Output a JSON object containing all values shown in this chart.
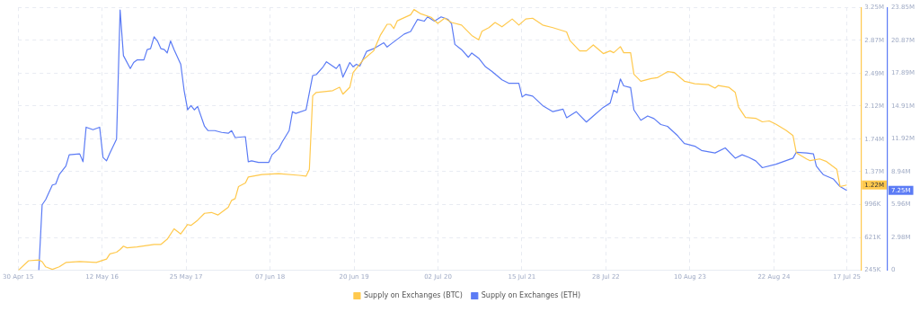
{
  "chart_data": {
    "type": "line",
    "series": [
      {
        "name": "Supply on Exchanges (BTC)",
        "color": "#ffc94d",
        "axis": "y",
        "x": [
          "2015-05-01",
          "2015-06-16",
          "2015-08-01",
          "2015-08-16",
          "2015-09-01",
          "2015-10-01",
          "2015-11-01",
          "2015-12-01",
          "2016-02-01",
          "2016-04-16",
          "2016-06-01",
          "2016-06-16",
          "2016-07-16",
          "2016-08-01",
          "2016-08-16",
          "2016-09-01",
          "2016-10-16",
          "2017-01-01",
          "2017-02-01",
          "2017-03-01",
          "2017-04-01",
          "2017-05-01",
          "2017-06-01",
          "2017-06-16",
          "2017-07-16",
          "2017-08-16",
          "2017-09-16",
          "2017-10-16",
          "2017-12-01",
          "2017-12-16",
          "2018-01-01",
          "2018-01-16",
          "2018-02-16",
          "2018-03-01",
          "2018-05-01",
          "2018-07-16",
          "2018-10-16",
          "2018-11-16",
          "2018-12-01",
          "2018-12-16",
          "2019-01-01",
          "2019-03-16",
          "2019-04-16",
          "2019-05-01",
          "2019-06-01",
          "2019-06-16",
          "2019-08-01",
          "2019-09-16",
          "2019-10-16",
          "2019-11-16",
          "2019-12-01",
          "2019-12-16",
          "2020-01-01",
          "2020-03-01",
          "2020-03-16",
          "2020-04-16",
          "2020-06-01",
          "2020-07-01",
          "2020-08-01",
          "2020-09-01",
          "2020-10-16",
          "2020-12-01",
          "2021-01-01",
          "2021-01-16",
          "2021-02-16",
          "2021-03-16",
          "2021-04-16",
          "2021-06-01",
          "2021-07-01",
          "2021-08-01",
          "2021-09-01",
          "2021-10-16",
          "2021-12-01",
          "2022-02-01",
          "2022-02-16",
          "2022-04-01",
          "2022-05-01",
          "2022-06-01",
          "2022-07-16",
          "2022-08-16",
          "2022-09-01",
          "2022-10-01",
          "2022-10-16",
          "2022-11-16",
          "2022-12-01",
          "2023-01-01",
          "2023-02-16",
          "2023-03-16",
          "2023-05-01",
          "2023-06-01",
          "2023-07-16",
          "2023-09-01",
          "2023-11-01",
          "2023-12-01",
          "2023-12-16",
          "2024-02-01",
          "2024-03-01",
          "2024-03-16",
          "2024-04-16",
          "2024-06-01",
          "2024-07-01",
          "2024-08-01",
          "2024-09-01",
          "2024-10-16",
          "2024-11-16",
          "2024-12-01",
          "2025-01-16",
          "2025-02-01",
          "2025-03-16",
          "2025-04-16",
          "2025-06-01",
          "2025-06-16",
          "2025-07-16"
        ],
        "values": [
          245000,
          354000,
          363000,
          344000,
          284000,
          255000,
          284000,
          334000,
          344000,
          334000,
          373000,
          432000,
          452000,
          482000,
          521000,
          502000,
          511000,
          541000,
          541000,
          600000,
          719000,
          660000,
          768000,
          758000,
          817000,
          896000,
          906000,
          877000,
          965000,
          1044000,
          1064000,
          1202000,
          1242000,
          1311000,
          1340000,
          1350000,
          1330000,
          1321000,
          1400000,
          2238000,
          2278000,
          2298000,
          2337000,
          2258000,
          2337000,
          2505000,
          2653000,
          2752000,
          2929000,
          3057000,
          3057000,
          3008000,
          3097000,
          3166000,
          3225000,
          3176000,
          3136000,
          3067000,
          3126000,
          3077000,
          3048000,
          2929000,
          2880000,
          2978000,
          3018000,
          3077000,
          3028000,
          3117000,
          3048000,
          3117000,
          3126000,
          3048000,
          3018000,
          2969000,
          2870000,
          2752000,
          2752000,
          2821000,
          2722000,
          2752000,
          2732000,
          2801000,
          2732000,
          2732000,
          2485000,
          2406000,
          2436000,
          2446000,
          2515000,
          2505000,
          2406000,
          2377000,
          2367000,
          2327000,
          2357000,
          2337000,
          2278000,
          2110000,
          1992000,
          1982000,
          1942000,
          1952000,
          1913000,
          1844000,
          1784000,
          1587000,
          1518000,
          1498000,
          1518000,
          1488000,
          1400000,
          1202000,
          1220000
        ]
      },
      {
        "name": "Supply on Exchanges (ETH)",
        "color": "#5b7bf5",
        "axis": "y2",
        "x": [
          "2015-08-01",
          "2015-08-16",
          "2015-09-01",
          "2015-10-01",
          "2015-10-16",
          "2015-11-01",
          "2015-12-01",
          "2015-12-16",
          "2016-02-01",
          "2016-02-16",
          "2016-03-01",
          "2016-04-01",
          "2016-05-01",
          "2016-05-16",
          "2016-06-01",
          "2016-06-16",
          "2016-07-16",
          "2016-08-01",
          "2016-08-16",
          "2016-09-16",
          "2016-10-01",
          "2016-10-16",
          "2016-11-16",
          "2016-12-01",
          "2016-12-16",
          "2017-01-01",
          "2017-01-16",
          "2017-02-01",
          "2017-02-16",
          "2017-03-01",
          "2017-03-16",
          "2017-04-01",
          "2017-05-01",
          "2017-05-16",
          "2017-06-01",
          "2017-06-16",
          "2017-07-01",
          "2017-07-16",
          "2017-08-16",
          "2017-09-01",
          "2017-10-01",
          "2017-11-01",
          "2017-12-01",
          "2017-12-16",
          "2018-01-01",
          "2018-02-16",
          "2018-03-01",
          "2018-03-16",
          "2018-04-16",
          "2018-06-01",
          "2018-06-16",
          "2018-07-16",
          "2018-08-01",
          "2018-09-01",
          "2018-09-16",
          "2018-10-01",
          "2018-11-16",
          "2018-12-16",
          "2019-01-01",
          "2019-02-01",
          "2019-02-16",
          "2019-04-01",
          "2019-04-16",
          "2019-05-01",
          "2019-06-01",
          "2019-06-16",
          "2019-07-01",
          "2019-07-16",
          "2019-08-16",
          "2019-09-16",
          "2019-11-01",
          "2019-11-16",
          "2019-12-01",
          "2020-02-01",
          "2020-03-01",
          "2020-04-01",
          "2020-05-01",
          "2020-05-16",
          "2020-06-16",
          "2020-07-16",
          "2020-08-16",
          "2020-09-01",
          "2020-09-16",
          "2020-10-16",
          "2020-11-16",
          "2020-12-01",
          "2021-01-01",
          "2021-02-01",
          "2021-03-01",
          "2021-04-16",
          "2021-05-16",
          "2021-07-01",
          "2021-07-16",
          "2021-08-01",
          "2021-09-01",
          "2021-10-16",
          "2021-12-01",
          "2022-01-16",
          "2022-02-01",
          "2022-03-16",
          "2022-05-01",
          "2022-06-01",
          "2022-07-16",
          "2022-08-16",
          "2022-09-01",
          "2022-09-16",
          "2022-10-01",
          "2022-10-16",
          "2022-11-16",
          "2022-12-01",
          "2023-01-01",
          "2023-02-01",
          "2023-03-01",
          "2023-04-01",
          "2023-05-01",
          "2023-06-16",
          "2023-07-16",
          "2023-09-01",
          "2023-10-01",
          "2023-12-01",
          "2024-01-16",
          "2024-03-01",
          "2024-04-01",
          "2024-05-01",
          "2024-06-01",
          "2024-07-01",
          "2024-09-01",
          "2024-11-16",
          "2024-12-01",
          "2025-01-16",
          "2025-02-16",
          "2025-03-01",
          "2025-03-16",
          "2025-04-01",
          "2025-05-16",
          "2025-06-16",
          "2025-07-16"
        ],
        "values": [
          0,
          5940000,
          6410000,
          7740000,
          7820000,
          8680000,
          9460000,
          10480000,
          10560000,
          9850000,
          12980000,
          12750000,
          12980000,
          10240000,
          9930000,
          10640000,
          11890000,
          23620000,
          19470000,
          18300000,
          18850000,
          19080000,
          19080000,
          20020000,
          20100000,
          21190000,
          20800000,
          20100000,
          20020000,
          19710000,
          20800000,
          20020000,
          18690000,
          16340000,
          14550000,
          14940000,
          14550000,
          14860000,
          13060000,
          12670000,
          12670000,
          12510000,
          12430000,
          12670000,
          12040000,
          12120000,
          9850000,
          9930000,
          9780000,
          9780000,
          10480000,
          11030000,
          11650000,
          12670000,
          14390000,
          14230000,
          14550000,
          17670000,
          17750000,
          18460000,
          18920000,
          18300000,
          18690000,
          17520000,
          18850000,
          18460000,
          18690000,
          18530000,
          19860000,
          20100000,
          20640000,
          20250000,
          20490000,
          21430000,
          21660000,
          22760000,
          22600000,
          22990000,
          22600000,
          22990000,
          22760000,
          22370000,
          20490000,
          20020000,
          19320000,
          19710000,
          19240000,
          18460000,
          18060000,
          17280000,
          16970000,
          16970000,
          15720000,
          15950000,
          15800000,
          14940000,
          14390000,
          14620000,
          13840000,
          14390000,
          13450000,
          14000000,
          14780000,
          15170000,
          16340000,
          16110000,
          17360000,
          16730000,
          16580000,
          14550000,
          13610000,
          14000000,
          13760000,
          13220000,
          13060000,
          12200000,
          11500000,
          11260000,
          10870000,
          10640000,
          11100000,
          10170000,
          10480000,
          10240000,
          9930000,
          9310000,
          9620000,
          10170000,
          10710000,
          10640000,
          10560000,
          9460000,
          9070000,
          8680000,
          8290000,
          7590000,
          7250000
        ]
      }
    ],
    "xlim": [
      "2015-04-30",
      "2025-09-18"
    ],
    "xticks": [
      {
        "value": "2015-04-30",
        "label": "30 Apr 15"
      },
      {
        "value": "2016-05-12",
        "label": "12 May 16"
      },
      {
        "value": "2017-05-25",
        "label": "25 May 17"
      },
      {
        "value": "2018-06-07",
        "label": "07 Jun 18"
      },
      {
        "value": "2019-06-20",
        "label": "20 Jun 19"
      },
      {
        "value": "2020-07-02",
        "label": "02 Jul 20"
      },
      {
        "value": "2021-07-15",
        "label": "15 Jul 21"
      },
      {
        "value": "2022-07-28",
        "label": "28 Jul 22"
      },
      {
        "value": "2023-08-10",
        "label": "10 Aug 23"
      },
      {
        "value": "2024-08-22",
        "label": "22 Aug 24"
      },
      {
        "value": "2025-07-17",
        "label": "17 Jul 25"
      }
    ],
    "ylim": [
      245000,
      3250000
    ],
    "yticks": [
      {
        "value": 245000,
        "label": "245K"
      },
      {
        "value": 621000,
        "label": "621K"
      },
      {
        "value": 996000,
        "label": "996K"
      },
      {
        "value": 1372000,
        "label": "1.37M"
      },
      {
        "value": 1744000,
        "label": "1.74M"
      },
      {
        "value": 2123000,
        "label": "2.12M"
      },
      {
        "value": 2494000,
        "label": "2.49M"
      },
      {
        "value": 2874000,
        "label": "2.87M"
      },
      {
        "value": 3250000,
        "label": "3.25M"
      }
    ],
    "y2lim": [
      0,
      23850000
    ],
    "y2ticks": [
      {
        "value": 0,
        "label": "0"
      },
      {
        "value": 2980000,
        "label": "2.98M"
      },
      {
        "value": 5960000,
        "label": "5.96M"
      },
      {
        "value": 8940000,
        "label": "8.94M"
      },
      {
        "value": 11920000,
        "label": "11.92M"
      },
      {
        "value": 14910000,
        "label": "14.91M"
      },
      {
        "value": 17890000,
        "label": "17.89M"
      },
      {
        "value": 20870000,
        "label": "20.87M"
      },
      {
        "value": 23850000,
        "label": "23.85M"
      }
    ],
    "annotations": [
      "1.22M",
      "7.25M"
    ],
    "grid": true,
    "legend": "bottom",
    "marker": "none"
  }
}
